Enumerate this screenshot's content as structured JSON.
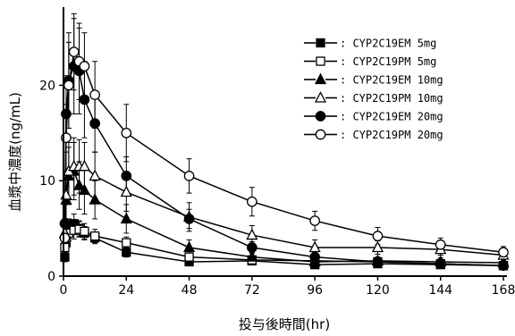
{
  "chart_data": {
    "type": "line",
    "xlabel": "投与後時間(hr)",
    "ylabel": "血漿中濃度(ng/mL)",
    "xlim": [
      0,
      168
    ],
    "ylim": [
      0,
      28
    ],
    "xticks": [
      0,
      24,
      48,
      72,
      96,
      120,
      144,
      168
    ],
    "yticks": [
      0,
      10,
      20
    ],
    "x": [
      0.5,
      1,
      2,
      4,
      6,
      8,
      12,
      24,
      48,
      72,
      96,
      120,
      144,
      168
    ],
    "series": [
      {
        "name": ": CYP2C19EM 5mg",
        "marker": "square-filled",
        "values": [
          2.0,
          3.5,
          5.0,
          5.5,
          5.0,
          4.5,
          4.0,
          2.5,
          1.5,
          1.6,
          1.2,
          1.3,
          1.2,
          1.1
        ],
        "errors": [
          0.5,
          0.8,
          1.0,
          1.0,
          0.8,
          0.7,
          0.6,
          0.5,
          0.3,
          0.3,
          0.3,
          0.3,
          0.3,
          0.3
        ]
      },
      {
        "name": ": CYP2C19PM 5mg",
        "marker": "square-open",
        "values": [
          3.0,
          4.0,
          4.5,
          4.8,
          4.9,
          4.7,
          4.2,
          3.5,
          2.0,
          1.7,
          1.6,
          1.5,
          1.3,
          1.1
        ],
        "errors": [
          0.6,
          0.7,
          0.8,
          0.9,
          0.8,
          0.8,
          0.7,
          0.6,
          0.4,
          0.4,
          0.3,
          0.3,
          0.3,
          0.3
        ]
      },
      {
        "name": ": CYP2C19EM 10mg",
        "marker": "triangle-filled",
        "values": [
          4.5,
          8.0,
          10.5,
          11.0,
          9.5,
          9.0,
          8.0,
          6.0,
          3.0,
          2.0,
          1.5,
          1.6,
          1.5,
          1.4
        ],
        "errors": [
          1.5,
          2.5,
          3.0,
          3.0,
          2.5,
          2.5,
          2.0,
          1.5,
          0.8,
          0.5,
          0.4,
          0.4,
          0.4,
          0.4
        ]
      },
      {
        "name": ": CYP2C19PM 10mg",
        "marker": "triangle-open",
        "values": [
          4.5,
          8.5,
          11.0,
          11.5,
          11.5,
          11.5,
          10.5,
          8.8,
          6.2,
          4.3,
          3.0,
          3.0,
          2.8,
          2.2
        ],
        "errors": [
          1.5,
          2.5,
          3.0,
          3.0,
          2.8,
          2.5,
          2.5,
          2.0,
          1.5,
          1.0,
          0.8,
          0.7,
          0.6,
          0.5
        ]
      },
      {
        "name": ": CYP2C19EM 20mg",
        "marker": "circle-filled",
        "values": [
          5.5,
          17.0,
          20.5,
          22.0,
          21.5,
          18.5,
          16.0,
          10.5,
          6.0,
          3.0,
          2.0,
          1.5,
          1.3,
          1.1
        ],
        "errors": [
          2.0,
          4.0,
          5.0,
          5.0,
          4.5,
          4.0,
          3.0,
          2.0,
          1.0,
          0.6,
          0.5,
          0.4,
          0.3,
          0.3
        ]
      },
      {
        "name": ": CYP2C19PM 20mg",
        "marker": "circle-open",
        "values": [
          4.0,
          14.5,
          20.0,
          23.5,
          22.5,
          22.0,
          19.0,
          15.0,
          10.5,
          7.8,
          5.8,
          4.2,
          3.3,
          2.5
        ],
        "errors": [
          1.5,
          3.5,
          4.5,
          4.0,
          4.0,
          3.5,
          3.5,
          3.0,
          1.8,
          1.5,
          1.0,
          0.9,
          0.7,
          0.6
        ]
      }
    ]
  }
}
